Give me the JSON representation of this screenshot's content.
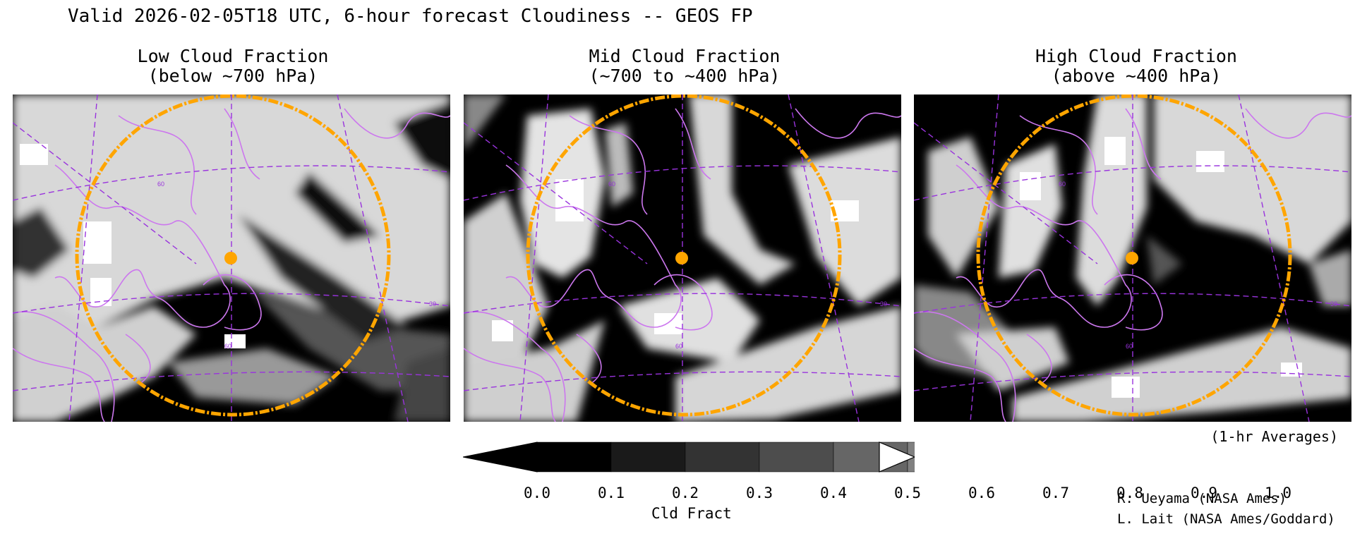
{
  "title": "Valid 2026-02-05T18 UTC, 6-hour forecast Cloudiness -- GEOS FP",
  "panels": [
    {
      "title_line1": "Low Cloud Fraction",
      "title_line2": "(below ~700 hPa)",
      "marker_dot_color": "#ffa500"
    },
    {
      "title_line1": "Mid Cloud Fraction",
      "title_line2": "(~700 to ~400 hPa)",
      "marker_dot_color": "#ffa500"
    },
    {
      "title_line1": "High Cloud Fraction",
      "title_line2": "(above ~400 hPa)",
      "marker_dot_color": "#ffa500"
    }
  ],
  "map_labels": {
    "lat_60": "60",
    "lon_60": "60",
    "lon_30": "30"
  },
  "footnote": "(1-hr Averages)",
  "colorbar": {
    "label": "Cld Fract",
    "ticks": [
      "0.0",
      "0.1",
      "0.2",
      "0.3",
      "0.4",
      "0.5",
      "0.6",
      "0.7",
      "0.8",
      "0.9",
      "1.0"
    ],
    "colors": [
      "#000000",
      "#1a1a1a",
      "#333333",
      "#4d4d4d",
      "#666666",
      "#808080",
      "#999999",
      "#b3b3b3",
      "#cccccc",
      "#e6e6e6"
    ],
    "under_color": "#000000",
    "over_color": "#ffffff"
  },
  "credits": [
    "R. Ueyama (NASA Ames)",
    "L. Lait (NASA Ames/Goddard)"
  ],
  "colors": {
    "coastline": "#cc77ee",
    "grid": "#9933dd",
    "range_ring": "#ffa500"
  }
}
